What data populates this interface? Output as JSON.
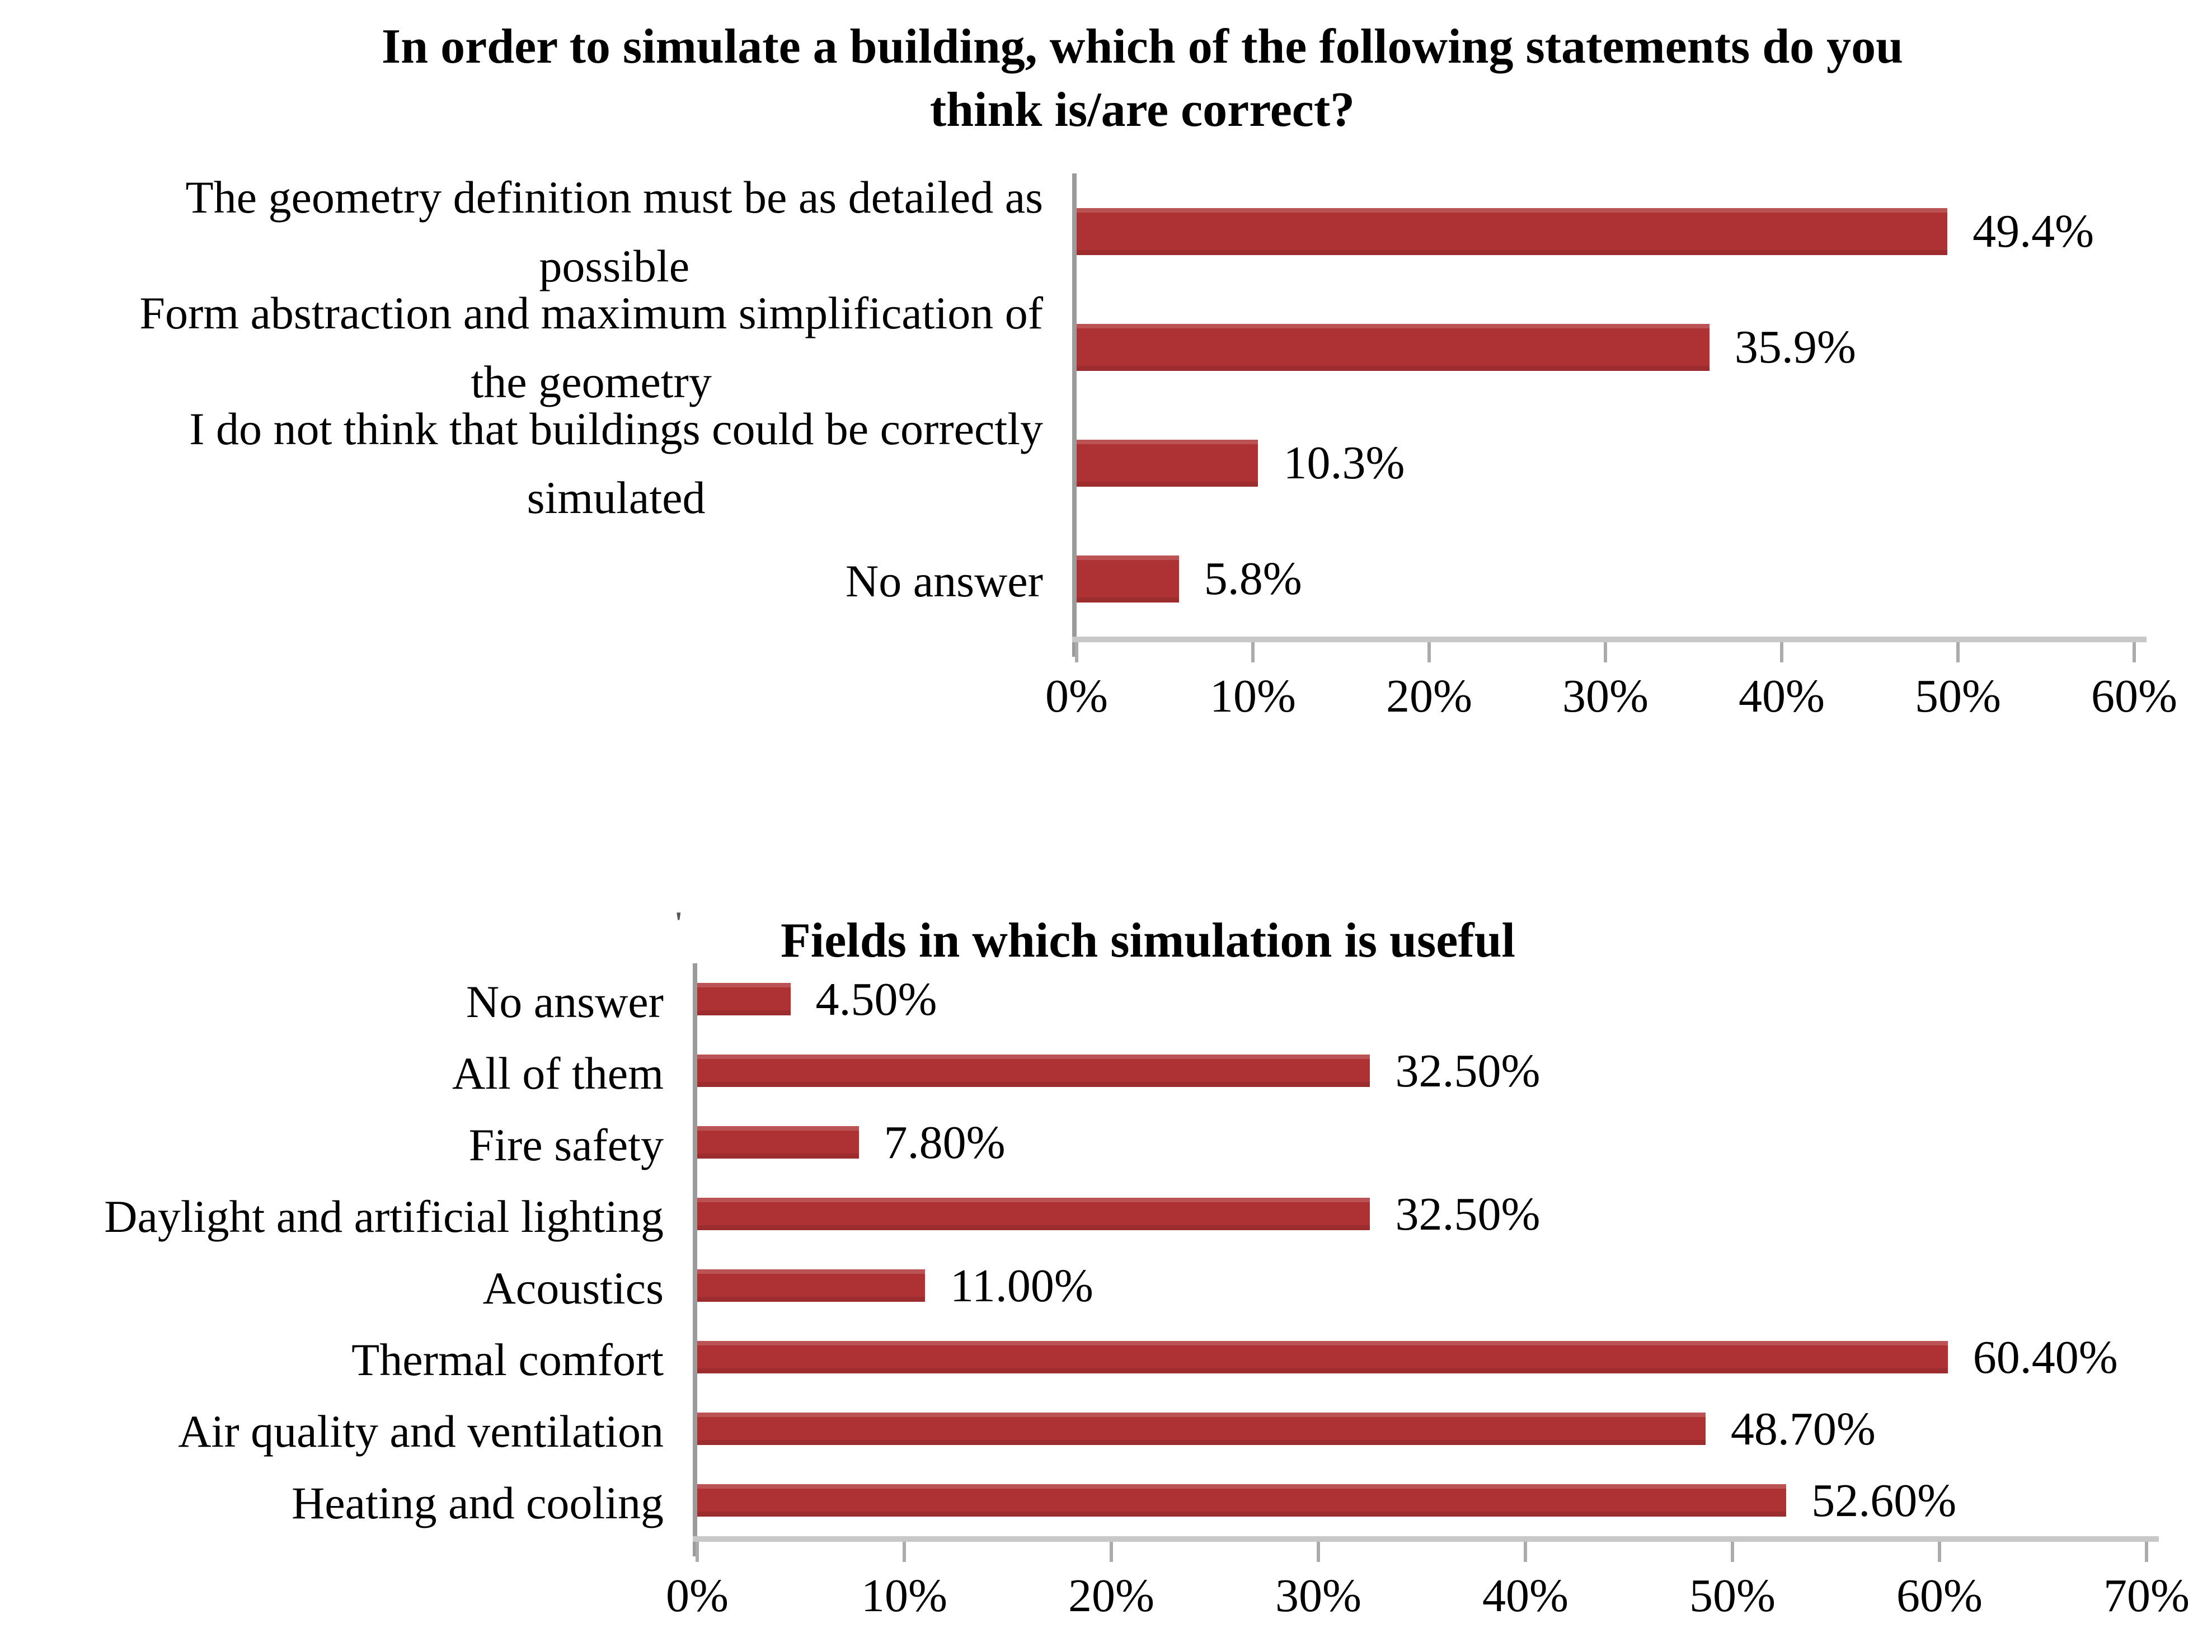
{
  "styles": {
    "bar_color": "#ae3133",
    "haxis_color": "#c8c8c8",
    "vaxis_color": "#9b9b9b",
    "tick_color": "#ababab",
    "text_color": "#000000",
    "background": "#ffffff"
  },
  "annotations": {
    "stray_mark": "'"
  },
  "chart_data": [
    {
      "type": "bar",
      "orientation": "horizontal",
      "title": "In order to simulate a building, which of the following statements do you think is/are correct?",
      "title_lines": [
        "In order to simulate a building, which of the following statements do you",
        "think is/are correct?"
      ],
      "categories": [
        "The geometry definition must be as detailed as possible",
        "Form abstraction and maximum simplification of the geometry",
        "I do not think that buildings could be correctly simulated",
        "No answer"
      ],
      "category_lines": [
        [
          "The geometry definition must be as detailed as",
          "possible"
        ],
        [
          "Form abstraction and maximum simplification of",
          "the geometry"
        ],
        [
          "I do not think that buildings could be correctly",
          "simulated"
        ],
        [
          "No answer"
        ]
      ],
      "values": [
        49.4,
        35.9,
        10.3,
        5.8
      ],
      "value_labels": [
        "49.4%",
        "35.9%",
        "10.3%",
        "5.8%"
      ],
      "xlabel": "",
      "ylabel": "",
      "xlim": [
        0,
        60
      ],
      "xticks": [
        0,
        10,
        20,
        30,
        40,
        50,
        60
      ],
      "xtick_labels": [
        "0%",
        "10%",
        "20%",
        "30%",
        "40%",
        "50%",
        "60%"
      ],
      "grid": false,
      "legend": null
    },
    {
      "type": "bar",
      "orientation": "horizontal",
      "title": "Fields in which simulation is useful",
      "title_lines": [
        "Fields in which simulation is useful"
      ],
      "categories": [
        "No answer",
        "All of them",
        "Fire safety",
        "Daylight and artificial lighting",
        "Acoustics",
        "Thermal comfort",
        "Air quality and ventilation",
        "Heating and cooling"
      ],
      "category_lines": [
        [
          "No answer"
        ],
        [
          "All of them"
        ],
        [
          "Fire safety"
        ],
        [
          "Daylight and artificial lighting"
        ],
        [
          "Acoustics"
        ],
        [
          "Thermal comfort"
        ],
        [
          "Air quality and ventilation"
        ],
        [
          "Heating and cooling"
        ]
      ],
      "values": [
        4.5,
        32.5,
        7.8,
        32.5,
        11.0,
        60.4,
        48.7,
        52.6
      ],
      "value_labels": [
        "4.50%",
        "32.50%",
        "7.80%",
        "32.50%",
        "11.00%",
        "60.40%",
        "48.70%",
        "52.60%"
      ],
      "xlabel": "",
      "ylabel": "",
      "xlim": [
        0,
        70
      ],
      "xticks": [
        0,
        10,
        20,
        30,
        40,
        50,
        60,
        70
      ],
      "xtick_labels": [
        "0%",
        "10%",
        "20%",
        "30%",
        "40%",
        "50%",
        "60%",
        "70%"
      ],
      "grid": false,
      "legend": null
    }
  ]
}
